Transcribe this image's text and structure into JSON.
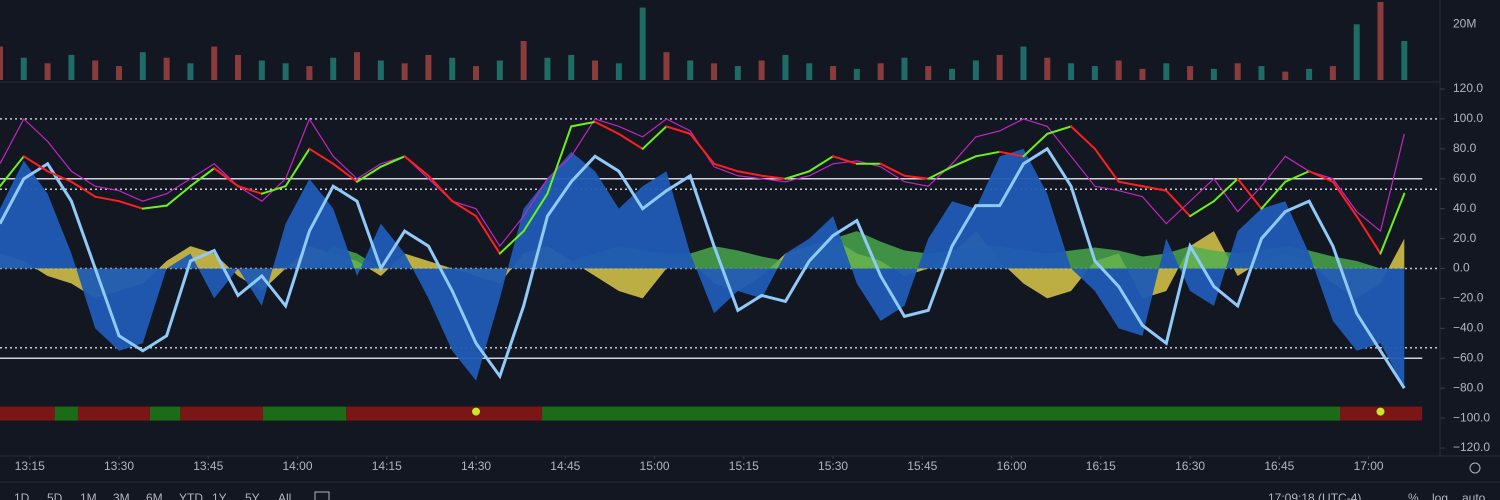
{
  "chart_data": [
    {
      "type": "bar",
      "x": [
        10,
        14,
        18,
        22,
        26,
        30,
        34,
        38,
        42,
        46,
        50,
        54,
        58,
        62,
        66,
        70,
        74,
        78,
        82,
        86,
        90,
        94,
        98,
        102,
        106,
        110,
        114,
        118,
        122,
        126,
        130,
        134,
        138,
        142,
        146,
        150,
        154,
        158,
        162,
        166,
        170,
        174,
        178,
        182,
        186,
        190,
        194,
        198,
        202,
        206,
        210,
        214,
        218,
        222,
        226,
        230,
        234,
        238,
        242,
        246
      ],
      "xlim": [
        10,
        252
      ],
      "ylim": [
        0,
        28
      ],
      "yticks": [
        {
          "value": 20,
          "label": "20M"
        }
      ],
      "values": [
        12,
        8,
        6,
        9,
        7,
        5,
        10,
        8,
        6,
        12,
        9,
        7,
        6,
        5,
        8,
        10,
        7,
        6,
        9,
        8,
        5,
        7,
        14,
        8,
        9,
        7,
        6,
        26,
        10,
        7,
        6,
        5,
        7,
        9,
        6,
        5,
        4,
        6,
        8,
        5,
        4,
        7,
        9,
        12,
        8,
        6,
        5,
        7,
        4,
        6,
        5,
        4,
        6,
        5,
        3,
        4,
        5,
        20,
        28,
        14
      ],
      "colors": [
        "#8a3b3b",
        "#1f6b66",
        "#8a3b3b",
        "#1f6b66",
        "#8a3b3b",
        "#8a3b3b",
        "#1f6b66",
        "#8a3b3b",
        "#1f6b66",
        "#8a3b3b",
        "#8a3b3b",
        "#1f6b66",
        "#1f6b66",
        "#8a3b3b",
        "#1f6b66",
        "#8a3b3b",
        "#1f6b66",
        "#8a3b3b",
        "#8a3b3b",
        "#1f6b66",
        "#8a3b3b",
        "#1f6b66",
        "#8a3b3b",
        "#1f6b66",
        "#1f6b66",
        "#8a3b3b",
        "#1f6b66",
        "#1f6b66",
        "#8a3b3b",
        "#1f6b66",
        "#8a3b3b",
        "#1f6b66",
        "#8a3b3b",
        "#1f6b66",
        "#1f6b66",
        "#8a3b3b",
        "#1f6b66",
        "#8a3b3b",
        "#1f6b66",
        "#8a3b3b",
        "#1f6b66",
        "#1f6b66",
        "#8a3b3b",
        "#1f6b66",
        "#8a3b3b",
        "#1f6b66",
        "#1f6b66",
        "#8a3b3b",
        "#8a3b3b",
        "#1f6b66",
        "#8a3b3b",
        "#1f6b66",
        "#8a3b3b",
        "#1f6b66",
        "#8a3b3b",
        "#1f6b66",
        "#8a3b3b",
        "#1f6b66",
        "#8a3b3b",
        "#1f6b66"
      ]
    },
    {
      "type": "line",
      "x": [
        10,
        14,
        18,
        22,
        26,
        30,
        34,
        38,
        42,
        46,
        50,
        54,
        58,
        62,
        66,
        70,
        74,
        78,
        82,
        86,
        90,
        94,
        98,
        102,
        106,
        110,
        114,
        118,
        122,
        126,
        130,
        134,
        138,
        142,
        146,
        150,
        154,
        158,
        162,
        166,
        170,
        174,
        178,
        182,
        186,
        190,
        194,
        198,
        202,
        206,
        210,
        214,
        218,
        222,
        226,
        230,
        234,
        238,
        242,
        246
      ],
      "xlim": [
        10,
        252
      ],
      "xticks": [
        {
          "value": 15,
          "label": "13:15"
        },
        {
          "value": 30,
          "label": "13:30"
        },
        {
          "value": 45,
          "label": "13:45"
        },
        {
          "value": 60,
          "label": "14:00"
        },
        {
          "value": 75,
          "label": "14:15"
        },
        {
          "value": 90,
          "label": "14:30"
        },
        {
          "value": 105,
          "label": "14:45"
        },
        {
          "value": 120,
          "label": "15:00"
        },
        {
          "value": 135,
          "label": "15:15"
        },
        {
          "value": 150,
          "label": "15:30"
        },
        {
          "value": 165,
          "label": "15:45"
        },
        {
          "value": 180,
          "label": "16:00"
        },
        {
          "value": 195,
          "label": "16:15"
        },
        {
          "value": 210,
          "label": "16:30"
        },
        {
          "value": 225,
          "label": "16:45"
        },
        {
          "value": 240,
          "label": "17:00"
        }
      ],
      "ylim": [
        -120,
        120
      ],
      "yticks": [
        {
          "value": 120,
          "label": "120.0"
        },
        {
          "value": 100,
          "label": "100.0"
        },
        {
          "value": 80,
          "label": "80.0"
        },
        {
          "value": 60,
          "label": "60.0"
        },
        {
          "value": 40,
          "label": "40.0"
        },
        {
          "value": 20,
          "label": "20.0"
        },
        {
          "value": 0,
          "label": "0.0"
        },
        {
          "value": -20,
          "label": "−20.0"
        },
        {
          "value": -40,
          "label": "−40.0"
        },
        {
          "value": -60,
          "label": "−60.0"
        },
        {
          "value": -80,
          "label": "−80.0"
        },
        {
          "value": -100,
          "label": "−100.0"
        },
        {
          "value": -120,
          "label": "−120.0"
        }
      ],
      "levels": [
        {
          "value": 100,
          "style": "dotted"
        },
        {
          "value": 60,
          "style": "solid"
        },
        {
          "value": 53,
          "style": "dotted"
        },
        {
          "value": 0,
          "style": "dotted"
        },
        {
          "value": -53,
          "style": "dotted"
        },
        {
          "value": -60,
          "style": "solid"
        }
      ],
      "areas": [
        {
          "color": "#e8d44d",
          "values": [
            10,
            5,
            -5,
            -10,
            -20,
            -15,
            -10,
            5,
            15,
            10,
            -5,
            -15,
            0,
            15,
            10,
            5,
            -5,
            10,
            5,
            0,
            -5,
            -10,
            10,
            15,
            5,
            -5,
            -15,
            -20,
            0,
            5,
            -10,
            -15,
            -5,
            10,
            15,
            20,
            10,
            5,
            -5,
            0,
            10,
            25,
            5,
            -10,
            -20,
            -15,
            5,
            10,
            -20,
            -15,
            15,
            25,
            -5,
            5,
            10,
            5,
            -10,
            -20,
            -10,
            20
          ]
        },
        {
          "color": "#4caf50",
          "values": [
            0,
            0,
            0,
            0,
            0,
            0,
            0,
            0,
            0,
            0,
            0,
            0,
            0,
            0,
            15,
            10,
            0,
            0,
            0,
            0,
            0,
            0,
            0,
            0,
            5,
            10,
            15,
            12,
            10,
            10,
            15,
            12,
            8,
            5,
            15,
            20,
            25,
            18,
            12,
            10,
            12,
            15,
            15,
            12,
            10,
            12,
            14,
            12,
            8,
            10,
            15,
            12,
            10,
            12,
            15,
            12,
            8,
            5,
            0,
            0
          ]
        },
        {
          "color": "#1f5bb5",
          "values": [
            40,
            72,
            50,
            10,
            -40,
            -55,
            -50,
            0,
            10,
            -20,
            0,
            -25,
            30,
            60,
            40,
            -5,
            30,
            10,
            -20,
            -55,
            -75,
            -20,
            40,
            60,
            78,
            65,
            40,
            55,
            65,
            10,
            -30,
            -15,
            -20,
            10,
            20,
            35,
            -10,
            -35,
            -25,
            20,
            45,
            40,
            75,
            80,
            50,
            0,
            -15,
            -40,
            -45,
            20,
            -15,
            -25,
            25,
            40,
            45,
            10,
            -35,
            -55,
            -50,
            -80
          ]
        }
      ],
      "series": [
        {
          "color": "#90caf9",
          "values": [
            30,
            60,
            70,
            45,
            0,
            -45,
            -55,
            -45,
            5,
            12,
            -18,
            -5,
            -25,
            25,
            55,
            45,
            0,
            25,
            15,
            -15,
            -50,
            -72,
            -25,
            35,
            58,
            75,
            65,
            40,
            52,
            62,
            15,
            -28,
            -18,
            -22,
            5,
            22,
            32,
            -5,
            -32,
            -28,
            15,
            42,
            42,
            70,
            80,
            55,
            5,
            -12,
            -38,
            -50,
            15,
            -12,
            -25,
            20,
            38,
            45,
            15,
            -30,
            -55,
            -80
          ]
        },
        {
          "color": "#c026c0",
          "values": [
            70,
            100,
            85,
            65,
            55,
            52,
            45,
            50,
            60,
            70,
            55,
            45,
            60,
            100,
            75,
            60,
            70,
            75,
            60,
            45,
            40,
            15,
            35,
            60,
            75,
            100,
            95,
            88,
            100,
            92,
            68,
            62,
            60,
            58,
            62,
            70,
            72,
            68,
            58,
            55,
            70,
            88,
            92,
            100,
            95,
            75,
            55,
            52,
            48,
            30,
            45,
            60,
            38,
            55,
            75,
            65,
            60,
            38,
            25,
            90
          ]
        },
        {
          "color": "#ff1f1f",
          "color_up": "#6cf21a",
          "values": [
            55,
            75,
            65,
            58,
            48,
            45,
            40,
            42,
            55,
            67,
            55,
            50,
            55,
            80,
            70,
            58,
            68,
            75,
            62,
            45,
            35,
            10,
            25,
            50,
            95,
            98,
            90,
            80,
            95,
            90,
            70,
            65,
            62,
            60,
            65,
            75,
            70,
            70,
            62,
            60,
            68,
            75,
            78,
            75,
            90,
            95,
            80,
            58,
            55,
            52,
            35,
            45,
            60,
            40,
            58,
            65,
            58,
            35,
            10,
            50
          ]
        }
      ],
      "strip": {
        "level": -97,
        "segments": [
          {
            "start": 10,
            "end": 19.2,
            "color": "#7a1616"
          },
          {
            "start": 19.2,
            "end": 23.1,
            "color": "#1c6b17"
          },
          {
            "start": 23.1,
            "end": 35.2,
            "color": "#7a1616"
          },
          {
            "start": 35.2,
            "end": 40.3,
            "color": "#1c6b17"
          },
          {
            "start": 40.3,
            "end": 54.2,
            "color": "#7a1616"
          },
          {
            "start": 54.2,
            "end": 68.2,
            "color": "#1c6b17"
          },
          {
            "start": 68.2,
            "end": 101.1,
            "color": "#7a1616"
          },
          {
            "start": 101.1,
            "end": 235.2,
            "color": "#1c6b17"
          },
          {
            "start": 235.2,
            "end": 249,
            "color": "#7a1616"
          }
        ],
        "dots": [
          90,
          242
        ],
        "dot_color": "#c8e62a"
      }
    }
  ],
  "toolbar": {
    "ranges": [
      "1D",
      "5D",
      "1M",
      "3M",
      "6M",
      "YTD",
      "1Y",
      "5Y",
      "All"
    ],
    "clock": "17:09:18 (UTC-4)",
    "percent": "%",
    "log": "log",
    "auto": "auto"
  }
}
